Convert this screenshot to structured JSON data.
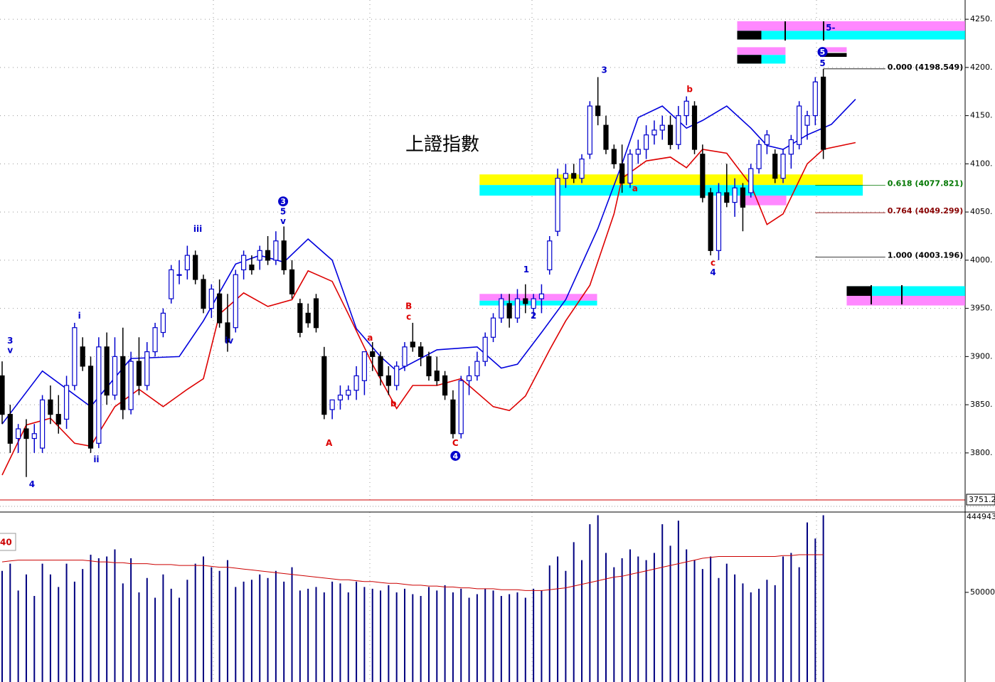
{
  "chart_data": {
    "type": "candlestick",
    "title": "上證指數",
    "open": [
      3880,
      3840,
      3815,
      3825,
      3815,
      3805,
      3855,
      3840,
      3835,
      3870,
      3910,
      3890,
      3810,
      3910,
      3860,
      3900,
      3845,
      3895,
      3870,
      3905,
      3925,
      3960,
      3985,
      3990,
      4005,
      3980,
      3950,
      3965,
      3935,
      3930,
      3990,
      3995,
      4000,
      4010,
      4000,
      4020,
      3990,
      3955,
      3945,
      3960,
      3900,
      3845,
      3855,
      3860,
      3865,
      3875,
      3905,
      3900,
      3880,
      3870,
      3890,
      3915,
      3910,
      3900,
      3885,
      3880,
      3855,
      3820,
      3875,
      3880,
      3895,
      3920,
      3940,
      3955,
      3940,
      3960,
      3950,
      3960,
      3990,
      4030,
      4085,
      4090,
      4085,
      4110,
      4160,
      4140,
      4115,
      4100,
      4080,
      4110,
      4115,
      4130,
      4135,
      4140,
      4120,
      4150,
      4160,
      4110,
      4070,
      4010,
      4070,
      4060,
      4075,
      4070,
      4095,
      4120,
      4110,
      4085,
      4110,
      4120,
      4140,
      4150,
      4190
    ],
    "high": [
      3895,
      3850,
      3830,
      3835,
      3830,
      3860,
      3870,
      3860,
      3880,
      3935,
      3920,
      3900,
      3920,
      3925,
      3920,
      3930,
      3905,
      3920,
      3915,
      3935,
      3950,
      3995,
      4000,
      4015,
      4010,
      3985,
      3975,
      3980,
      3965,
      3990,
      4010,
      4005,
      4015,
      4025,
      4030,
      4035,
      4000,
      3960,
      3955,
      3965,
      3910,
      3855,
      3870,
      3870,
      3890,
      3905,
      3915,
      3905,
      3890,
      3895,
      3915,
      3935,
      3915,
      3905,
      3900,
      3885,
      3865,
      3880,
      3890,
      3905,
      3925,
      3945,
      3965,
      3965,
      3970,
      3975,
      3965,
      3975,
      4025,
      4095,
      4100,
      4100,
      4110,
      4165,
      4190,
      4150,
      4120,
      4120,
      4115,
      4125,
      4140,
      4145,
      4150,
      4150,
      4160,
      4170,
      4165,
      4120,
      4075,
      4080,
      4100,
      4085,
      4080,
      4100,
      4125,
      4135,
      4115,
      4115,
      4130,
      4165,
      4155,
      4190,
      4198.5
    ],
    "low": [
      3830,
      3800,
      3800,
      3775,
      3800,
      3800,
      3830,
      3820,
      3825,
      3865,
      3885,
      3800,
      3805,
      3850,
      3855,
      3835,
      3840,
      3860,
      3865,
      3900,
      3920,
      3955,
      3975,
      3980,
      3975,
      3945,
      3940,
      3930,
      3905,
      3925,
      3980,
      3985,
      3990,
      3995,
      3995,
      3985,
      3960,
      3920,
      3930,
      3925,
      3835,
      3835,
      3845,
      3855,
      3855,
      3860,
      3885,
      3870,
      3860,
      3865,
      3885,
      3905,
      3890,
      3875,
      3870,
      3855,
      3815,
      3815,
      3860,
      3875,
      3890,
      3915,
      3935,
      3930,
      3935,
      3945,
      3940,
      3945,
      3985,
      4025,
      4075,
      4080,
      4080,
      4105,
      4140,
      4110,
      4095,
      4070,
      4075,
      4100,
      4105,
      4120,
      4125,
      4115,
      4115,
      4140,
      4110,
      4060,
      4005,
      4000,
      4055,
      4045,
      4030,
      4065,
      4090,
      4110,
      4080,
      4080,
      4095,
      4115,
      4125,
      4140,
      4105
    ],
    "close": [
      3840,
      3810,
      3825,
      3815,
      3820,
      3855,
      3840,
      3830,
      3870,
      3930,
      3890,
      3805,
      3910,
      3860,
      3900,
      3845,
      3895,
      3870,
      3905,
      3930,
      3945,
      3990,
      3985,
      4005,
      3980,
      3950,
      3970,
      3935,
      3915,
      3985,
      4005,
      3990,
      4010,
      4000,
      4020,
      3990,
      3965,
      3925,
      3935,
      3930,
      3840,
      3855,
      3860,
      3865,
      3880,
      3905,
      3900,
      3880,
      3870,
      3890,
      3910,
      3910,
      3900,
      3880,
      3875,
      3860,
      3820,
      3875,
      3880,
      3895,
      3920,
      3940,
      3960,
      3940,
      3960,
      3955,
      3960,
      3965,
      4020,
      4085,
      4090,
      4085,
      4105,
      4160,
      4150,
      4115,
      4100,
      4080,
      4110,
      4115,
      4130,
      4135,
      4140,
      4120,
      4150,
      4165,
      4115,
      4065,
      4010,
      4070,
      4060,
      4075,
      4055,
      4095,
      4120,
      4130,
      4085,
      4110,
      4125,
      4160,
      4150,
      4185,
      4115
    ],
    "up_color": "#0000cc",
    "down_color": "#000000",
    "ylim": [
      3751.2,
      4270
    ],
    "yticks": [
      {
        "value": 3800,
        "label": "3800."
      },
      {
        "value": 3850,
        "label": "3850."
      },
      {
        "value": 3900,
        "label": "3900."
      },
      {
        "value": 3950,
        "label": "3950."
      },
      {
        "value": 4000,
        "label": "4000."
      },
      {
        "value": 4050,
        "label": "4050."
      },
      {
        "value": 4100,
        "label": "4100."
      },
      {
        "value": 4150,
        "label": "4150."
      },
      {
        "value": 4200,
        "label": "4200."
      },
      {
        "value": 4250,
        "label": "4250."
      }
    ],
    "grid": true,
    "last_price_label": 3751.2,
    "bands": [
      {
        "color": "#0000dd",
        "x": [
          0,
          5,
          11,
          16,
          22,
          25,
          29,
          32,
          35,
          38,
          41,
          44,
          47,
          49,
          54,
          59,
          62,
          64,
          67,
          70,
          74,
          77,
          79,
          82,
          85,
          87,
          90,
          93,
          95,
          97,
          100,
          103,
          106
        ],
        "values": [
          3830,
          3885,
          3848,
          3898,
          3900,
          3937,
          3996,
          4005,
          3998,
          4022,
          4000,
          3929,
          3900,
          3885,
          3907,
          3910,
          3888,
          3892,
          3925,
          3959,
          4033,
          4100,
          4148,
          4160,
          4137,
          4145,
          4160,
          4137,
          4119,
          4115,
          4130,
          4141,
          4167
        ]
      },
      {
        "color": "#dd0000",
        "x": [
          0,
          3,
          6,
          9,
          11,
          14,
          17,
          20,
          23,
          25,
          27,
          30,
          33,
          36,
          38,
          41,
          43,
          46,
          49,
          51,
          54,
          57,
          61,
          63,
          65,
          68,
          70,
          73,
          76,
          77,
          80,
          83,
          85,
          87,
          90,
          93,
          95,
          97,
          100,
          102,
          106
        ],
        "values": [
          3777,
          3829,
          3836,
          3810,
          3807,
          3848,
          3866,
          3848,
          3866,
          3877,
          3944,
          3966,
          3952,
          3959,
          3989,
          3978,
          3944,
          3892,
          3846,
          3870,
          3870,
          3877,
          3848,
          3844,
          3859,
          3907,
          3937,
          3974,
          4048,
          4085,
          4103,
          4107,
          4096,
          4115,
          4111,
          4078,
          4037,
          4048,
          4100,
          4115,
          4122
        ]
      }
    ],
    "fib_levels": [
      {
        "label": "0.000 (4198.549)",
        "value": 4198.549,
        "from": 102,
        "color": "#000000"
      },
      {
        "label": "0.618 (4077.821)",
        "value": 4077.821,
        "from": 101,
        "color": "#007700"
      },
      {
        "label": "0.764 (4049.299)",
        "value": 4049.299,
        "from": 101,
        "color": "#880000"
      },
      {
        "label": "1.000 (4003.196)",
        "value": 4003.196,
        "from": 101,
        "color": "#000000"
      }
    ],
    "fib_to": 109.7,
    "zones": [
      {
        "from": 59.3,
        "to": 106.9,
        "low": 4078,
        "high": 4089,
        "color": "#ffff00"
      },
      {
        "from": 59.3,
        "to": 106.9,
        "low": 4067,
        "high": 4078,
        "color": "#00ffff"
      },
      {
        "from": 91.6,
        "to": 97.4,
        "low": 4057,
        "high": 4067,
        "color": "#ff88ff"
      },
      {
        "from": 59.3,
        "to": 73.9,
        "low": 3958,
        "high": 3965,
        "color": "#ff88ff"
      },
      {
        "from": 59.3,
        "to": 73.9,
        "low": 3953,
        "high": 3958,
        "color": "#00ffff"
      },
      {
        "from": 91.3,
        "to": 119.6,
        "low": 4238,
        "high": 4248,
        "color": "#ff88ff"
      },
      {
        "from": 91.3,
        "to": 119.6,
        "low": 4229,
        "high": 4238,
        "color": "#00ffff"
      },
      {
        "from": 91.3,
        "to": 94.3,
        "low": 4229,
        "high": 4238,
        "color": "#000000"
      },
      {
        "from": 91.3,
        "to": 97.3,
        "low": 4213,
        "high": 4221,
        "color": "#ff88ff"
      },
      {
        "from": 91.3,
        "to": 97.3,
        "low": 4204,
        "high": 4213,
        "color": "#00ffff"
      },
      {
        "from": 91.3,
        "to": 94.3,
        "low": 4204,
        "high": 4213,
        "color": "#000000"
      },
      {
        "from": 101.6,
        "to": 104.9,
        "low": 4216,
        "high": 4221,
        "color": "#ff88ff"
      },
      {
        "from": 101.6,
        "to": 104.9,
        "low": 4211,
        "high": 4215,
        "color": "#000000"
      },
      {
        "from": 104.9,
        "to": 119.6,
        "low": 3963,
        "high": 3973,
        "color": "#00ffff"
      },
      {
        "from": 104.9,
        "to": 107.9,
        "low": 3963,
        "high": 3973,
        "color": "#000000"
      },
      {
        "from": 104.9,
        "to": 119.6,
        "low": 3953,
        "high": 3963,
        "color": "#ff88ff"
      }
    ],
    "annotations": [
      {
        "text": "3",
        "index": 1,
        "price": 3916,
        "color": "#0000cc",
        "circled": false
      },
      {
        "text": "v",
        "index": 1,
        "price": 3906,
        "color": "#0000cc",
        "circled": false
      },
      {
        "text": "4",
        "index": 3.7,
        "price": 3767,
        "color": "#0000cc",
        "circled": false
      },
      {
        "text": "i",
        "index": 9.6,
        "price": 3942,
        "color": "#0000cc",
        "circled": false
      },
      {
        "text": "ii",
        "index": 11.7,
        "price": 3793,
        "color": "#0000cc",
        "circled": false
      },
      {
        "text": "iii",
        "index": 24.3,
        "price": 4032,
        "color": "#0000cc",
        "circled": false
      },
      {
        "text": "iv",
        "index": 28.2,
        "price": 3916,
        "color": "#0000cc",
        "circled": false
      },
      {
        "text": "3",
        "index": 34.9,
        "price": 4061,
        "color": "#0000cc",
        "circled": true
      },
      {
        "text": "5",
        "index": 34.9,
        "price": 4050,
        "color": "#0000cc",
        "circled": false
      },
      {
        "text": "v",
        "index": 34.9,
        "price": 4040,
        "color": "#0000cc",
        "circled": false
      },
      {
        "text": "A",
        "index": 40.6,
        "price": 3810,
        "color": "#dd0000",
        "circled": false
      },
      {
        "text": "a",
        "index": 45.7,
        "price": 3919,
        "color": "#dd0000",
        "circled": false
      },
      {
        "text": "b",
        "index": 48.6,
        "price": 3851,
        "color": "#dd0000",
        "circled": false
      },
      {
        "text": "B",
        "index": 50.5,
        "price": 3952,
        "color": "#dd0000",
        "circled": false
      },
      {
        "text": "c",
        "index": 50.5,
        "price": 3941,
        "color": "#dd0000",
        "circled": false
      },
      {
        "text": "C",
        "index": 56.3,
        "price": 3810,
        "color": "#dd0000",
        "circled": false
      },
      {
        "text": "4",
        "index": 56.3,
        "price": 3797,
        "color": "#0000cc",
        "circled": true
      },
      {
        "text": "1",
        "index": 65.1,
        "price": 3990,
        "color": "#0000cc",
        "circled": false
      },
      {
        "text": "2",
        "index": 66,
        "price": 3942,
        "color": "#0000cc",
        "circled": false
      },
      {
        "text": "3",
        "index": 74.8,
        "price": 4197,
        "color": "#0000cc",
        "circled": false
      },
      {
        "text": "a",
        "index": 78.6,
        "price": 4074,
        "color": "#dd0000",
        "circled": false
      },
      {
        "text": "b",
        "index": 85.4,
        "price": 4177,
        "color": "#dd0000",
        "circled": false
      },
      {
        "text": "c",
        "index": 88.3,
        "price": 3997,
        "color": "#dd0000",
        "circled": false
      },
      {
        "text": "4",
        "index": 88.3,
        "price": 3987,
        "color": "#0000cc",
        "circled": false
      },
      {
        "text": "5",
        "index": 101.9,
        "price": 4216,
        "color": "#0000cc",
        "circled": true
      },
      {
        "text": "5",
        "index": 101.9,
        "price": 4204,
        "color": "#0000cc",
        "circled": false
      },
      {
        "text": "5-",
        "index": 102.9,
        "price": 4241,
        "color": "#0000cc",
        "circled": false
      }
    ],
    "volume": {
      "color": "#000080",
      "lim": [
        0,
        94800
      ],
      "ticks": [
        50000
      ],
      "top_value": 444943,
      "values": [
        62000,
        66000,
        51000,
        60000,
        48000,
        66000,
        60000,
        53000,
        66000,
        56000,
        63000,
        71000,
        69000,
        70000,
        74000,
        55000,
        69000,
        50000,
        58000,
        47000,
        60000,
        52000,
        47000,
        57000,
        66000,
        70000,
        64000,
        62000,
        68000,
        53000,
        56000,
        57000,
        60000,
        58000,
        62000,
        56000,
        64000,
        51000,
        52000,
        53000,
        50000,
        56000,
        55000,
        50000,
        56000,
        53000,
        52000,
        51000,
        54000,
        50000,
        52000,
        49000,
        48000,
        53000,
        51000,
        54000,
        50000,
        52000,
        47000,
        49000,
        52000,
        51000,
        48000,
        49000,
        50000,
        47000,
        52000,
        51000,
        65000,
        70000,
        62000,
        78000,
        68000,
        88000,
        93000,
        72000,
        64000,
        69000,
        74000,
        70000,
        68000,
        72000,
        88000,
        76000,
        90000,
        74000,
        68000,
        63000,
        70000,
        58000,
        66000,
        60000,
        55000,
        50000,
        52000,
        57000,
        54000,
        70000,
        72000,
        64000,
        89000,
        80000,
        93000
      ],
      "ma": {
        "period": 40,
        "color": "#cc0000",
        "values": [
          67000,
          67500,
          68000,
          68000,
          68000,
          68000,
          68000,
          68000,
          68000,
          68000,
          68000,
          67500,
          67000,
          67000,
          66500,
          66500,
          66000,
          66000,
          66000,
          65500,
          65500,
          65500,
          65000,
          65000,
          65000,
          65000,
          64500,
          64000,
          64000,
          63500,
          63000,
          62500,
          62000,
          61500,
          61000,
          60500,
          60000,
          59500,
          59000,
          58500,
          58000,
          57500,
          57000,
          57000,
          56500,
          56000,
          56000,
          55500,
          55000,
          55000,
          54500,
          54000,
          54000,
          53500,
          53500,
          53000,
          53000,
          52500,
          52500,
          52000,
          52000,
          52000,
          51500,
          51500,
          51500,
          51000,
          51000,
          51000,
          51500,
          52000,
          52500,
          53500,
          54500,
          55500,
          56500,
          57500,
          58500,
          59000,
          60000,
          61000,
          62000,
          63000,
          64000,
          65000,
          66000,
          67000,
          68000,
          69000,
          69500,
          70000,
          70000,
          70000,
          70000,
          70000,
          70000,
          70000,
          70000,
          70500,
          70500,
          71000,
          71000,
          71000,
          71000
        ]
      }
    }
  }
}
